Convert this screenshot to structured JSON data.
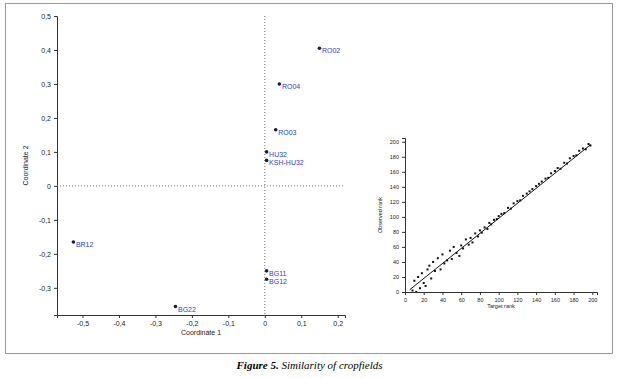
{
  "chart_data": [
    {
      "type": "scatter",
      "x_label": "Coordinate 1",
      "y_label": "Coordinate 2",
      "point_labels": [
        "RO02",
        "RO04",
        "RO03",
        "HU32",
        "KSH-HU32",
        "BG11",
        "BG12",
        "BG22",
        "BR12"
      ],
      "x": [
        0.15,
        0.04,
        0.03,
        0.005,
        0.005,
        0.005,
        0.005,
        -0.245,
        -0.525
      ],
      "y": [
        0.405,
        0.3,
        0.165,
        0.1,
        0.075,
        -0.25,
        -0.275,
        -0.355,
        -0.165
      ],
      "color": "#2b3fd0",
      "xlim": [
        -0.57,
        0.22
      ],
      "xticks": [
        {
          "value": -0.5,
          "label": "-0,5"
        },
        {
          "value": -0.4,
          "label": "-0,4"
        },
        {
          "value": -0.3,
          "label": "-0,3"
        },
        {
          "value": -0.2,
          "label": "-0,2"
        },
        {
          "value": -0.1,
          "label": "-0,1"
        },
        0,
        {
          "value": 0.1,
          "label": "0,1"
        },
        {
          "value": 0.2,
          "label": "0,2"
        }
      ],
      "ylim": [
        -0.38,
        0.5
      ],
      "yticks": [
        {
          "value": -0.3,
          "label": "-0,3"
        },
        {
          "value": -0.2,
          "label": "-0,2"
        },
        {
          "value": -0.1,
          "label": "-0,1"
        },
        0,
        {
          "value": 0.1,
          "label": "0,1"
        },
        {
          "value": 0.2,
          "label": "0,2"
        },
        {
          "value": 0.3,
          "label": "0,3"
        },
        {
          "value": 0.4,
          "label": "0,4"
        },
        {
          "value": 0.5,
          "label": "0,5"
        }
      ],
      "grid": false
    },
    {
      "type": "scatter",
      "x_label": "Target rank",
      "y_label": "Observed rank",
      "series": [
        {
          "type": "scatter",
          "color": "#111111",
          "x": [
            8,
            10,
            12,
            14,
            16,
            18,
            20,
            22,
            24,
            26,
            28,
            30,
            32,
            35,
            38,
            40,
            42,
            45,
            48,
            50,
            52,
            55,
            58,
            60,
            62,
            65,
            68,
            70,
            72,
            75,
            78,
            80,
            82,
            85,
            88,
            90,
            92,
            95,
            98,
            100,
            103,
            106,
            110,
            113,
            116,
            120,
            123,
            126,
            130,
            133,
            136,
            140,
            143,
            146,
            150,
            153,
            156,
            160,
            163,
            166,
            170,
            173,
            176,
            180,
            183,
            186,
            190,
            193,
            196,
            198
          ],
          "values": [
            2,
            15,
            0,
            20,
            5,
            25,
            12,
            8,
            30,
            35,
            18,
            40,
            28,
            45,
            30,
            50,
            38,
            42,
            55,
            44,
            60,
            52,
            48,
            62,
            58,
            70,
            63,
            72,
            66,
            78,
            74,
            82,
            79,
            86,
            84,
            92,
            90,
            96,
            97,
            101,
            104,
            105,
            112,
            111,
            118,
            121,
            122,
            128,
            131,
            134,
            137,
            141,
            144,
            147,
            151,
            152,
            158,
            161,
            165,
            164,
            172,
            171,
            178,
            181,
            182,
            188,
            191,
            190,
            197,
            195
          ]
        },
        {
          "type": "line",
          "color": "#111111",
          "x": [
            5,
            198
          ],
          "values": [
            3,
            196
          ]
        }
      ],
      "xlim": [
        0,
        205
      ],
      "xticks": [
        0,
        20,
        40,
        60,
        80,
        100,
        120,
        140,
        160,
        180,
        200
      ],
      "ylim": [
        0,
        205
      ],
      "yticks": [
        0,
        20,
        40,
        60,
        80,
        100,
        120,
        140,
        160,
        180,
        200
      ],
      "grid": false
    }
  ],
  "caption": {
    "label": "Figure 5.",
    "text": "Similarity of cropfields"
  }
}
